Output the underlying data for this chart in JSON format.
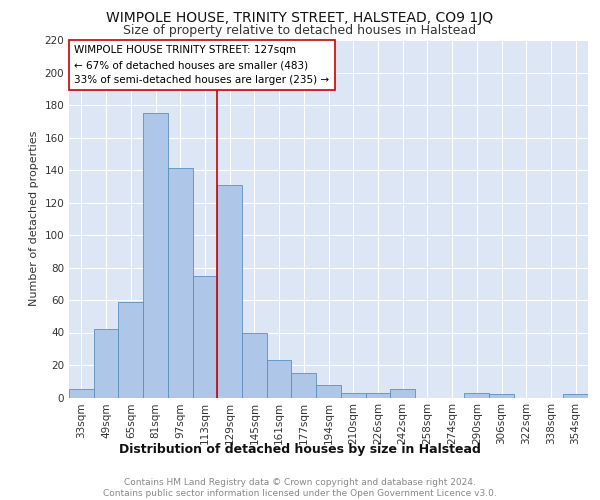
{
  "title": "WIMPOLE HOUSE, TRINITY STREET, HALSTEAD, CO9 1JQ",
  "subtitle": "Size of property relative to detached houses in Halstead",
  "xlabel": "Distribution of detached houses by size in Halstead",
  "ylabel": "Number of detached properties",
  "categories": [
    "33sqm",
    "49sqm",
    "65sqm",
    "81sqm",
    "97sqm",
    "113sqm",
    "129sqm",
    "145sqm",
    "161sqm",
    "177sqm",
    "194sqm",
    "210sqm",
    "226sqm",
    "242sqm",
    "258sqm",
    "274sqm",
    "290sqm",
    "306sqm",
    "322sqm",
    "338sqm",
    "354sqm"
  ],
  "values": [
    5,
    42,
    59,
    175,
    141,
    75,
    131,
    40,
    23,
    15,
    8,
    3,
    3,
    5,
    0,
    0,
    3,
    2,
    0,
    0,
    2
  ],
  "bar_color": "#aec6e8",
  "bar_edge_color": "#5a8fc0",
  "vline_x_index": 6,
  "vline_color": "#cc0000",
  "annotation_line1": "WIMPOLE HOUSE TRINITY STREET: 127sqm",
  "annotation_line2": "← 67% of detached houses are smaller (483)",
  "annotation_line3": "33% of semi-detached houses are larger (235) →",
  "annotation_box_color": "#ffffff",
  "annotation_box_edge": "#cc0000",
  "ylim": [
    0,
    220
  ],
  "yticks": [
    0,
    20,
    40,
    60,
    80,
    100,
    120,
    140,
    160,
    180,
    200,
    220
  ],
  "background_color": "#dce6f5",
  "grid_color": "#ffffff",
  "footer_text": "Contains HM Land Registry data © Crown copyright and database right 2024.\nContains public sector information licensed under the Open Government Licence v3.0.",
  "title_fontsize": 10,
  "subtitle_fontsize": 9,
  "xlabel_fontsize": 9,
  "ylabel_fontsize": 8,
  "tick_fontsize": 7.5,
  "annotation_fontsize": 7.5,
  "footer_fontsize": 6.5
}
